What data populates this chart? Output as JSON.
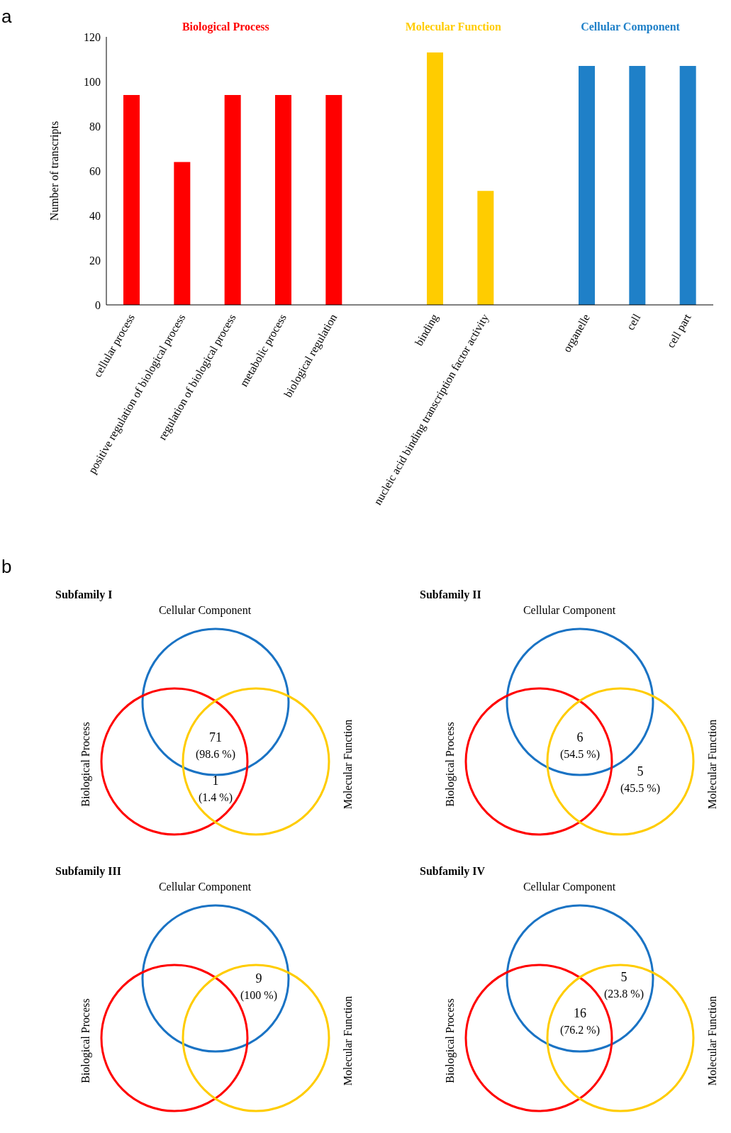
{
  "chart_data": [
    {
      "type": "bar",
      "categories": [
        "cellular process",
        "positive regulation of biological process",
        "regulation of biological process",
        "metabolic process",
        "biological regulation",
        null,
        "binding",
        "nucleic acid binding transcription factor activity",
        null,
        "organelle",
        "cell",
        "cell part"
      ],
      "series": [
        {
          "name": "Biological Process",
          "color": "#ff0000",
          "values": [
            94,
            64,
            94,
            94,
            94,
            null,
            null,
            null,
            null,
            null,
            null,
            null
          ]
        },
        {
          "name": "Molecular Function",
          "color": "#ffcc00",
          "values": [
            null,
            null,
            null,
            null,
            null,
            null,
            113,
            51,
            null,
            null,
            null,
            null
          ]
        },
        {
          "name": "Cellular Component",
          "color": "#1f80c8",
          "values": [
            null,
            null,
            null,
            null,
            null,
            null,
            null,
            null,
            null,
            107,
            107,
            107
          ]
        }
      ],
      "ylabel": "Number of transcripts",
      "ylim": [
        0,
        120
      ],
      "yticks": [
        0,
        20,
        40,
        60,
        80,
        100,
        120
      ],
      "annotations": [
        "a",
        "b"
      ]
    },
    {
      "type": "other",
      "title": "Subfamily I",
      "categories": [
        null,
        null
      ],
      "values": [
        71,
        1
      ],
      "data_labels": true,
      "annotations": [
        "Cellular Component",
        "Biological Process",
        "Molecular Function",
        "(98.6 %)",
        "(1.4 %)"
      ]
    },
    {
      "type": "other",
      "title": "Subfamily II",
      "categories": [
        null,
        null
      ],
      "values": [
        6,
        5
      ],
      "data_labels": true,
      "annotations": [
        "Cellular Component",
        "Biological Process",
        "Molecular Function",
        "(54.5 %)",
        "(45.5 %)"
      ]
    },
    {
      "type": "other",
      "title": "Subfamily III",
      "categories": [
        null
      ],
      "values": [
        9
      ],
      "data_labels": true,
      "annotations": [
        "Cellular Component",
        "Biological Process",
        "Molecular Function",
        "(100 %)"
      ]
    },
    {
      "type": "other",
      "title": "Subfamily IV",
      "categories": [
        null,
        null
      ],
      "values": [
        5,
        16
      ],
      "data_labels": true,
      "annotations": [
        "Cellular Component",
        "Biological Process",
        "Molecular Function",
        "(23.8 %)",
        "(76.2 %)"
      ]
    }
  ]
}
